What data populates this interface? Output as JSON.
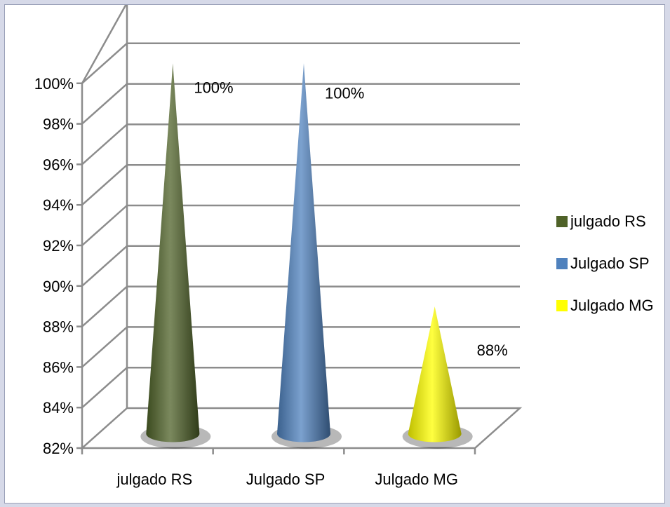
{
  "chart_data": {
    "type": "bar",
    "style": "3d-cone",
    "categories": [
      "julgado RS",
      "Julgado SP",
      "Julgado MG"
    ],
    "series": [
      {
        "name": "julgado RS",
        "values": [
          100,
          null,
          null
        ],
        "color": "#4f6228",
        "data_label": "100%"
      },
      {
        "name": "Julgado SP",
        "values": [
          null,
          100,
          null
        ],
        "color": "#4f81bd",
        "data_label": "100%"
      },
      {
        "name": "Julgado MG",
        "values": [
          null,
          null,
          88
        ],
        "color": "#ffff00",
        "data_label": "88%"
      }
    ],
    "ylim": [
      82,
      100
    ],
    "yticks": [
      "82%",
      "84%",
      "86%",
      "88%",
      "90%",
      "92%",
      "94%",
      "96%",
      "98%",
      "100%"
    ],
    "grid": true,
    "legend_position": "right"
  }
}
